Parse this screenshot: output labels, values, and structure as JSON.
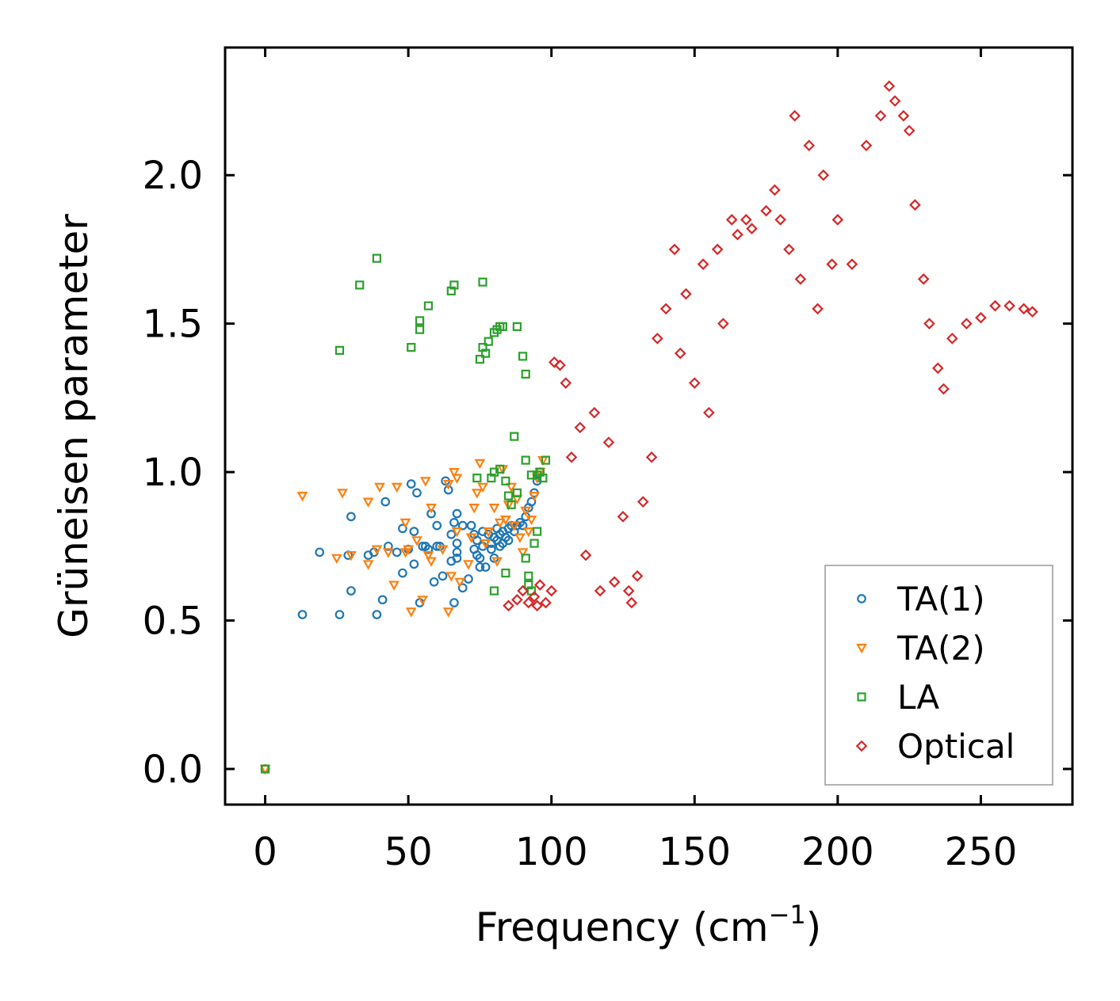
{
  "chart_data": {
    "type": "scatter",
    "title": "",
    "xlabel": "Frequency (cm",
    "xlabel_sup": "−1",
    "xlabel_close": ")",
    "ylabel": "Grüneisen parameter",
    "xlim": [
      -14,
      282
    ],
    "ylim": [
      -0.12,
      2.43
    ],
    "xticks": [
      0,
      50,
      100,
      150,
      200,
      250
    ],
    "xtick_labels": [
      "0",
      "50",
      "100",
      "150",
      "200",
      "250"
    ],
    "yticks": [
      0.0,
      0.5,
      1.0,
      1.5,
      2.0
    ],
    "ytick_labels": [
      "0.0",
      "0.5",
      "1.0",
      "1.5",
      "2.0"
    ],
    "grid": false,
    "legend_position": "bottom-right",
    "series": [
      {
        "name": "TA(1)",
        "marker": "circle",
        "color": "#1f77b4",
        "points": [
          [
            0,
            0
          ],
          [
            13,
            0.52
          ],
          [
            19,
            0.73
          ],
          [
            26,
            0.52
          ],
          [
            29,
            0.72
          ],
          [
            30,
            0.85
          ],
          [
            30,
            0.6
          ],
          [
            36,
            0.72
          ],
          [
            38,
            0.73
          ],
          [
            39,
            0.52
          ],
          [
            41,
            0.57
          ],
          [
            42,
            0.9
          ],
          [
            43,
            0.75
          ],
          [
            46,
            0.73
          ],
          [
            48,
            0.81
          ],
          [
            48,
            0.66
          ],
          [
            50,
            0.74
          ],
          [
            51,
            0.96
          ],
          [
            52,
            0.8
          ],
          [
            52,
            0.69
          ],
          [
            53,
            0.93
          ],
          [
            54,
            0.56
          ],
          [
            55,
            0.75
          ],
          [
            56,
            0.75
          ],
          [
            57,
            0.74
          ],
          [
            58,
            0.86
          ],
          [
            59,
            0.63
          ],
          [
            60,
            0.75
          ],
          [
            60,
            0.82
          ],
          [
            61,
            0.75
          ],
          [
            62,
            0.65
          ],
          [
            63,
            0.97
          ],
          [
            64,
            0.94
          ],
          [
            65,
            0.79
          ],
          [
            65,
            0.7
          ],
          [
            66,
            0.56
          ],
          [
            66,
            0.83
          ],
          [
            67,
            0.86
          ],
          [
            67,
            0.76
          ],
          [
            67,
            0.73
          ],
          [
            67,
            0.71
          ],
          [
            69,
            0.82
          ],
          [
            69,
            0.61
          ],
          [
            71,
            0.64
          ],
          [
            72,
            0.82
          ],
          [
            73,
            0.74
          ],
          [
            73,
            0.79
          ],
          [
            74,
            0.77
          ],
          [
            74,
            0.72
          ],
          [
            75,
            0.71
          ],
          [
            75,
            0.68
          ],
          [
            76,
            0.8
          ],
          [
            76,
            0.75
          ],
          [
            77,
            0.68
          ],
          [
            78,
            0.79
          ],
          [
            79,
            0.76
          ],
          [
            79,
            0.74
          ],
          [
            80,
            0.78
          ],
          [
            80,
            0.71
          ],
          [
            81,
            0.81
          ],
          [
            81,
            0.77
          ],
          [
            82,
            0.79
          ],
          [
            82,
            0.75
          ],
          [
            83,
            0.8
          ],
          [
            83,
            0.76
          ],
          [
            84,
            0.78
          ],
          [
            85,
            0.81
          ],
          [
            85,
            0.77
          ],
          [
            86,
            0.82
          ],
          [
            87,
            0.8
          ],
          [
            88,
            0.82
          ],
          [
            89,
            0.83
          ],
          [
            90,
            0.82
          ],
          [
            91,
            0.85
          ],
          [
            92,
            0.88
          ],
          [
            93,
            0.9
          ],
          [
            94,
            0.93
          ],
          [
            95,
            0.97
          ],
          [
            96,
            1.0
          ]
        ]
      },
      {
        "name": "TA(2)",
        "marker": "triangle-down",
        "color": "#ff7f0e",
        "points": [
          [
            0,
            0
          ],
          [
            13,
            0.92
          ],
          [
            25,
            0.71
          ],
          [
            27,
            0.93
          ],
          [
            30,
            0.72
          ],
          [
            36,
            0.69
          ],
          [
            36,
            0.9
          ],
          [
            39,
            0.74
          ],
          [
            40,
            0.95
          ],
          [
            43,
            0.73
          ],
          [
            45,
            0.62
          ],
          [
            46,
            0.95
          ],
          [
            49,
            0.73
          ],
          [
            49,
            0.83
          ],
          [
            50,
            0.74
          ],
          [
            51,
            0.53
          ],
          [
            53,
            0.77
          ],
          [
            55,
            0.57
          ],
          [
            56,
            0.97
          ],
          [
            57,
            0.72
          ],
          [
            58,
            0.7
          ],
          [
            58,
            0.88
          ],
          [
            62,
            0.74
          ],
          [
            64,
            0.96
          ],
          [
            64,
            0.53
          ],
          [
            65,
            0.65
          ],
          [
            66,
            1.0
          ],
          [
            67,
            0.98
          ],
          [
            67,
            0.8
          ],
          [
            68,
            0.63
          ],
          [
            71,
            0.69
          ],
          [
            72,
            0.78
          ],
          [
            73,
            0.88
          ],
          [
            74,
            0.93
          ],
          [
            75,
            1.03
          ],
          [
            76,
            0.95
          ],
          [
            77,
            0.76
          ],
          [
            78,
            0.8
          ],
          [
            80,
            0.88
          ],
          [
            81,
            0.7
          ],
          [
            82,
            0.83
          ],
          [
            83,
            1.01
          ],
          [
            84,
            0.84
          ],
          [
            85,
            0.89
          ],
          [
            86,
            0.95
          ],
          [
            87,
            0.82
          ],
          [
            88,
            0.91
          ],
          [
            89,
            0.78
          ],
          [
            90,
            0.73
          ],
          [
            91,
            0.87
          ],
          [
            92,
            0.8
          ],
          [
            93,
            0.84
          ],
          [
            94,
            0.92
          ],
          [
            95,
            0.98
          ],
          [
            96,
            1.0
          ],
          [
            97,
            1.04
          ]
        ]
      },
      {
        "name": "LA",
        "marker": "square",
        "color": "#2ca02c",
        "points": [
          [
            0,
            0
          ],
          [
            26,
            1.41
          ],
          [
            33,
            1.63
          ],
          [
            39,
            1.72
          ],
          [
            51,
            1.42
          ],
          [
            54,
            1.48
          ],
          [
            54,
            1.51
          ],
          [
            57,
            1.56
          ],
          [
            65,
            1.61
          ],
          [
            66,
            1.63
          ],
          [
            74,
            0.98
          ],
          [
            75,
            1.38
          ],
          [
            76,
            1.42
          ],
          [
            76,
            1.64
          ],
          [
            77,
            1.4
          ],
          [
            78,
            1.44
          ],
          [
            79,
            0.98
          ],
          [
            80,
            1.0
          ],
          [
            80,
            0.6
          ],
          [
            80,
            1.47
          ],
          [
            81,
            1.48
          ],
          [
            82,
            1.49
          ],
          [
            82,
            1.01
          ],
          [
            83,
            1.49
          ],
          [
            84,
            0.66
          ],
          [
            84,
            0.97
          ],
          [
            85,
            0.92
          ],
          [
            86,
            0.89
          ],
          [
            87,
            1.12
          ],
          [
            88,
            0.93
          ],
          [
            88,
            1.49
          ],
          [
            90,
            1.39
          ],
          [
            91,
            1.33
          ],
          [
            91,
            1.04
          ],
          [
            91,
            0.71
          ],
          [
            92,
            0.65
          ],
          [
            92,
            0.62
          ],
          [
            93,
            0.6
          ],
          [
            93,
            0.99
          ],
          [
            94,
            0.76
          ],
          [
            95,
            0.8
          ],
          [
            95,
            0.99
          ],
          [
            96,
            1.0
          ],
          [
            97,
            0.98
          ],
          [
            98,
            1.04
          ]
        ]
      },
      {
        "name": "Optical",
        "marker": "diamond",
        "color": "#d62728",
        "points": [
          [
            85,
            0.55
          ],
          [
            88,
            0.57
          ],
          [
            90,
            0.6
          ],
          [
            92,
            0.56
          ],
          [
            94,
            0.58
          ],
          [
            95,
            0.55
          ],
          [
            96,
            0.62
          ],
          [
            98,
            0.56
          ],
          [
            100,
            0.6
          ],
          [
            101,
            1.37
          ],
          [
            103,
            1.36
          ],
          [
            105,
            1.3
          ],
          [
            107,
            1.05
          ],
          [
            110,
            1.15
          ],
          [
            112,
            0.72
          ],
          [
            115,
            1.2
          ],
          [
            117,
            0.6
          ],
          [
            120,
            1.1
          ],
          [
            122,
            0.63
          ],
          [
            125,
            0.85
          ],
          [
            127,
            0.6
          ],
          [
            128,
            0.56
          ],
          [
            130,
            0.65
          ],
          [
            132,
            0.9
          ],
          [
            135,
            1.05
          ],
          [
            137,
            1.45
          ],
          [
            140,
            1.55
          ],
          [
            143,
            1.75
          ],
          [
            145,
            1.4
          ],
          [
            147,
            1.6
          ],
          [
            150,
            1.3
          ],
          [
            153,
            1.7
          ],
          [
            155,
            1.2
          ],
          [
            158,
            1.75
          ],
          [
            160,
            1.5
          ],
          [
            163,
            1.85
          ],
          [
            165,
            1.8
          ],
          [
            168,
            1.85
          ],
          [
            170,
            1.82
          ],
          [
            175,
            1.88
          ],
          [
            178,
            1.95
          ],
          [
            180,
            1.85
          ],
          [
            183,
            1.75
          ],
          [
            185,
            2.2
          ],
          [
            187,
            1.65
          ],
          [
            190,
            2.1
          ],
          [
            193,
            1.55
          ],
          [
            195,
            2.0
          ],
          [
            198,
            1.7
          ],
          [
            200,
            1.85
          ],
          [
            205,
            1.7
          ],
          [
            210,
            2.1
          ],
          [
            215,
            2.2
          ],
          [
            218,
            2.3
          ],
          [
            220,
            2.25
          ],
          [
            223,
            2.2
          ],
          [
            225,
            2.15
          ],
          [
            227,
            1.9
          ],
          [
            230,
            1.65
          ],
          [
            232,
            1.5
          ],
          [
            235,
            1.35
          ],
          [
            237,
            1.28
          ],
          [
            240,
            1.45
          ],
          [
            245,
            1.5
          ],
          [
            250,
            1.52
          ],
          [
            255,
            1.56
          ],
          [
            260,
            1.56
          ],
          [
            265,
            1.55
          ],
          [
            268,
            1.54
          ]
        ]
      }
    ]
  }
}
